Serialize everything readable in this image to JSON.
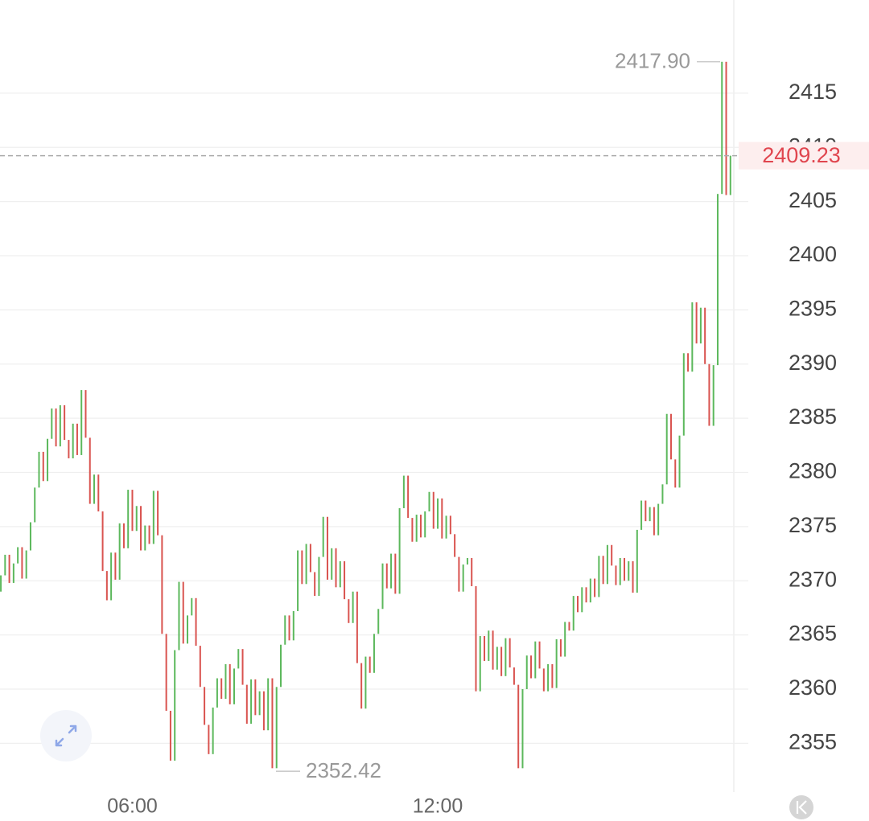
{
  "chart_data": {
    "type": "candlestick",
    "up_color": "#5cb85c",
    "down_color": "#d9534f",
    "last_price_color": "#e0454e",
    "grid": true,
    "xlim": [
      -0.2,
      172.8
    ],
    "xticks": [
      {
        "value": 31,
        "label": "06:00"
      },
      {
        "value": 103,
        "label": "12:00"
      }
    ],
    "ylim": [
      2350.5,
      2423.6
    ],
    "yticks": [
      2355,
      2360,
      2365,
      2370,
      2375,
      2380,
      2385,
      2390,
      2395,
      2400,
      2405,
      2410,
      2415
    ],
    "last_price": 2409.23,
    "max_annotation": {
      "value": 2417.9,
      "label": "2417.90"
    },
    "min_annotation": 2352.42,
    "open": [
      2369.0,
      2370.5,
      2372.4,
      2369.8,
      2371.6,
      2373.1,
      2370.2,
      2372.8,
      2375.4,
      2378.6,
      2381.9,
      2379.2,
      2383.1,
      2385.9,
      2382.4,
      2386.2,
      2383.0,
      2381.3,
      2384.5,
      2381.6,
      2387.6,
      2383.2,
      2377.1,
      2379.8,
      2376.4,
      2370.9,
      2368.2,
      2372.6,
      2370.1,
      2375.3,
      2373.0,
      2378.4,
      2374.6,
      2376.9,
      2372.8,
      2375.1,
      2373.4,
      2378.3,
      2374.2,
      2365.1,
      2358.0,
      2353.4,
      2363.6,
      2369.9,
      2364.2,
      2366.8,
      2368.4,
      2364.0,
      2360.2,
      2356.7,
      2354.0,
      2358.3,
      2361.0,
      2359.1,
      2362.3,
      2358.6,
      2361.9,
      2363.7,
      2360.4,
      2356.8,
      2360.9,
      2357.6,
      2359.8,
      2356.2,
      2361.0,
      2352.7,
      2360.2,
      2364.1,
      2366.8,
      2364.5,
      2367.2,
      2372.8,
      2369.7,
      2373.4,
      2370.8,
      2368.6,
      2372.2,
      2375.9,
      2370.1,
      2373.0,
      2369.4,
      2371.8,
      2368.3,
      2366.1,
      2369.0,
      2362.4,
      2358.2,
      2363.0,
      2361.5,
      2365.1,
      2367.4,
      2371.6,
      2369.3,
      2372.5,
      2368.8,
      2376.7,
      2379.7,
      2375.8,
      2373.6,
      2376.1,
      2374.0,
      2376.4,
      2378.2,
      2374.8,
      2377.6,
      2373.9,
      2376.0,
      2374.3,
      2372.2,
      2369.0,
      2371.5,
      2372.1,
      2369.5,
      2359.8,
      2364.9,
      2362.6,
      2365.4,
      2361.8,
      2363.9,
      2361.2,
      2364.7,
      2362.0,
      2360.4,
      2352.7,
      2360.0,
      2363.1,
      2361.0,
      2364.4,
      2361.9,
      2359.8,
      2362.3,
      2360.1,
      2364.6,
      2363.0,
      2366.2,
      2365.4,
      2368.6,
      2367.1,
      2369.4,
      2368.0,
      2370.2,
      2368.5,
      2372.3,
      2369.7,
      2373.3,
      2371.4,
      2369.6,
      2372.1,
      2370.0,
      2371.8,
      2368.9,
      2374.7,
      2377.4,
      2375.5,
      2376.8,
      2374.2,
      2377.1,
      2378.9,
      2385.4,
      2381.2,
      2378.6,
      2383.4,
      2391.0,
      2389.3,
      2395.7,
      2391.9,
      2395.2,
      2390.0,
      2384.3,
      2389.9,
      2405.7,
      2417.9,
      2405.6
    ],
    "close": [
      2370.5,
      2372.4,
      2369.8,
      2371.6,
      2373.1,
      2370.2,
      2372.8,
      2375.4,
      2378.6,
      2381.9,
      2379.2,
      2383.1,
      2385.9,
      2382.4,
      2386.2,
      2383.0,
      2381.3,
      2384.5,
      2381.6,
      2387.6,
      2383.2,
      2377.1,
      2379.8,
      2376.4,
      2370.9,
      2368.2,
      2372.6,
      2370.1,
      2375.3,
      2373.0,
      2378.4,
      2374.6,
      2376.9,
      2372.8,
      2375.1,
      2373.4,
      2378.3,
      2374.2,
      2365.1,
      2358.0,
      2353.4,
      2363.6,
      2369.9,
      2364.2,
      2366.8,
      2368.4,
      2364.0,
      2360.2,
      2356.7,
      2354.0,
      2358.3,
      2361.0,
      2359.1,
      2362.3,
      2358.6,
      2361.9,
      2363.7,
      2360.4,
      2356.8,
      2360.9,
      2357.6,
      2359.8,
      2356.2,
      2361.0,
      2352.7,
      2360.2,
      2364.1,
      2366.8,
      2364.5,
      2367.2,
      2372.8,
      2369.7,
      2373.4,
      2370.8,
      2368.6,
      2372.2,
      2375.9,
      2370.1,
      2373.0,
      2369.4,
      2371.8,
      2368.3,
      2366.1,
      2369.0,
      2362.4,
      2358.2,
      2363.0,
      2361.5,
      2365.1,
      2367.4,
      2371.6,
      2369.3,
      2372.5,
      2368.8,
      2376.7,
      2379.7,
      2375.8,
      2373.6,
      2376.1,
      2374.0,
      2376.4,
      2378.2,
      2374.8,
      2377.6,
      2373.9,
      2376.0,
      2374.3,
      2372.2,
      2369.0,
      2371.5,
      2372.1,
      2369.5,
      2359.8,
      2364.9,
      2362.6,
      2365.4,
      2361.8,
      2363.9,
      2361.2,
      2364.7,
      2362.0,
      2360.4,
      2352.7,
      2360.0,
      2363.1,
      2361.0,
      2364.4,
      2361.9,
      2359.8,
      2362.3,
      2360.1,
      2364.6,
      2363.0,
      2366.2,
      2365.4,
      2368.6,
      2367.1,
      2369.4,
      2368.0,
      2370.2,
      2368.5,
      2372.3,
      2369.7,
      2373.3,
      2371.4,
      2369.6,
      2372.1,
      2370.0,
      2371.8,
      2368.9,
      2374.7,
      2377.4,
      2375.5,
      2376.8,
      2374.2,
      2377.1,
      2378.9,
      2385.4,
      2381.2,
      2378.6,
      2383.4,
      2391.0,
      2389.3,
      2395.7,
      2391.9,
      2395.2,
      2390.0,
      2384.3,
      2389.9,
      2405.7,
      2417.9,
      2405.6,
      2409.23
    ]
  }
}
